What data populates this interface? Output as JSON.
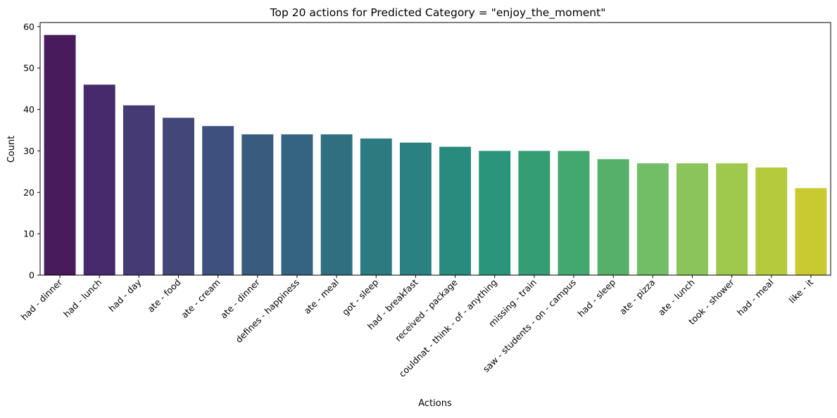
{
  "chart_data": {
    "type": "bar",
    "title": "Top 20 actions for Predicted Category = \"enjoy_the_moment\"",
    "xlabel": "Actions",
    "ylabel": "Count",
    "ylim": [
      0,
      61
    ],
    "yticks": [
      0,
      10,
      20,
      30,
      40,
      50,
      60
    ],
    "grid": false,
    "palette": "viridis",
    "categories": [
      "had - dinner",
      "had - lunch",
      "had - day",
      "ate - food",
      "ate - cream",
      "ate - dinner",
      "defines - happiness",
      "ate - meal",
      "got - sleep",
      "had - breakfast",
      "received - package",
      "couldnat - think - of - anything",
      "missing - train",
      "saw - students - on - campus",
      "had - sleep",
      "ate - pizza",
      "ate - lunch",
      "took - shower",
      "had - meal",
      "like - it"
    ],
    "values": [
      58,
      46,
      41,
      38,
      36,
      34,
      34,
      34,
      33,
      32,
      31,
      30,
      30,
      30,
      28,
      27,
      27,
      27,
      26,
      21
    ],
    "colors": [
      "#481c5c",
      "#472a6c",
      "#463a74",
      "#424679",
      "#3e507e",
      "#395c7e",
      "#34647f",
      "#306f80",
      "#2e7a81",
      "#2b8181",
      "#288b7e",
      "#2b957a",
      "#349d74",
      "#43a770",
      "#57b06a",
      "#72be66",
      "#8bc45a",
      "#9ec94c",
      "#b5ca3c",
      "#c9c932"
    ]
  }
}
